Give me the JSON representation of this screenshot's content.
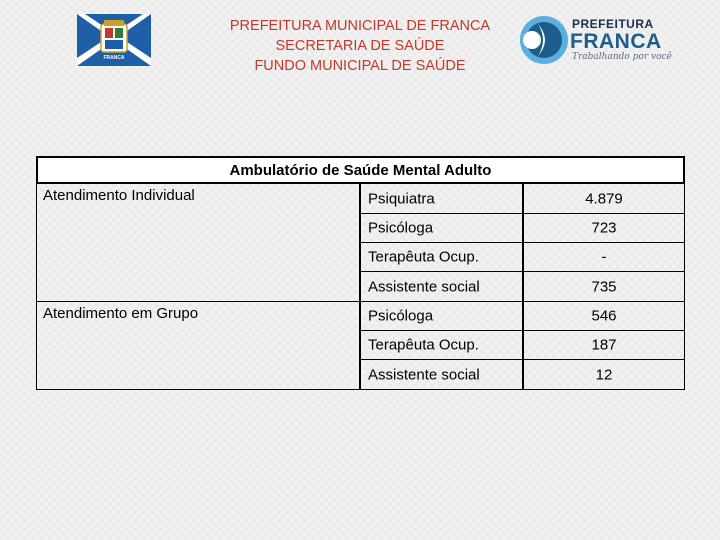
{
  "header": {
    "line1": "PREFEITURA MUNICIPAL DE FRANCA",
    "line2": "SECRETARIA DE SAÚDE",
    "line3": "FUNDO MUNICIPAL DE SAÚDE"
  },
  "crest": {
    "text": "FRANCA",
    "icon": "city-coat-of-arms-icon"
  },
  "logo": {
    "prefeitura": "PREFEITURA",
    "franca": "FRANCA",
    "tagline": "Trabalhando por você",
    "icon": "prefeitura-franca-logo-icon",
    "colors": {
      "dark": "#1a2f4d",
      "blue": "#1c5d8c",
      "light_blue": "#5aaee0"
    }
  },
  "table": {
    "title": "Ambulatório de Saúde Mental Adulto",
    "groups": [
      {
        "label": "Atendimento Individual",
        "rows": [
          {
            "professional": "Psiquiatra",
            "value": "4.879"
          },
          {
            "professional": "Psicóloga",
            "value": "723"
          },
          {
            "professional": "Terapêuta  Ocup.",
            "value": "-"
          },
          {
            "professional": "Assistente social",
            "value": "735"
          }
        ]
      },
      {
        "label": "Atendimento em Grupo",
        "rows": [
          {
            "professional": "Psicóloga",
            "value": "546"
          },
          {
            "professional": "Terapêuta  Ocup.",
            "value": "187"
          },
          {
            "professional": "Assistente social",
            "value": "12"
          }
        ]
      }
    ]
  },
  "colors": {
    "header_text": "#c0392b",
    "border": "#000000"
  }
}
